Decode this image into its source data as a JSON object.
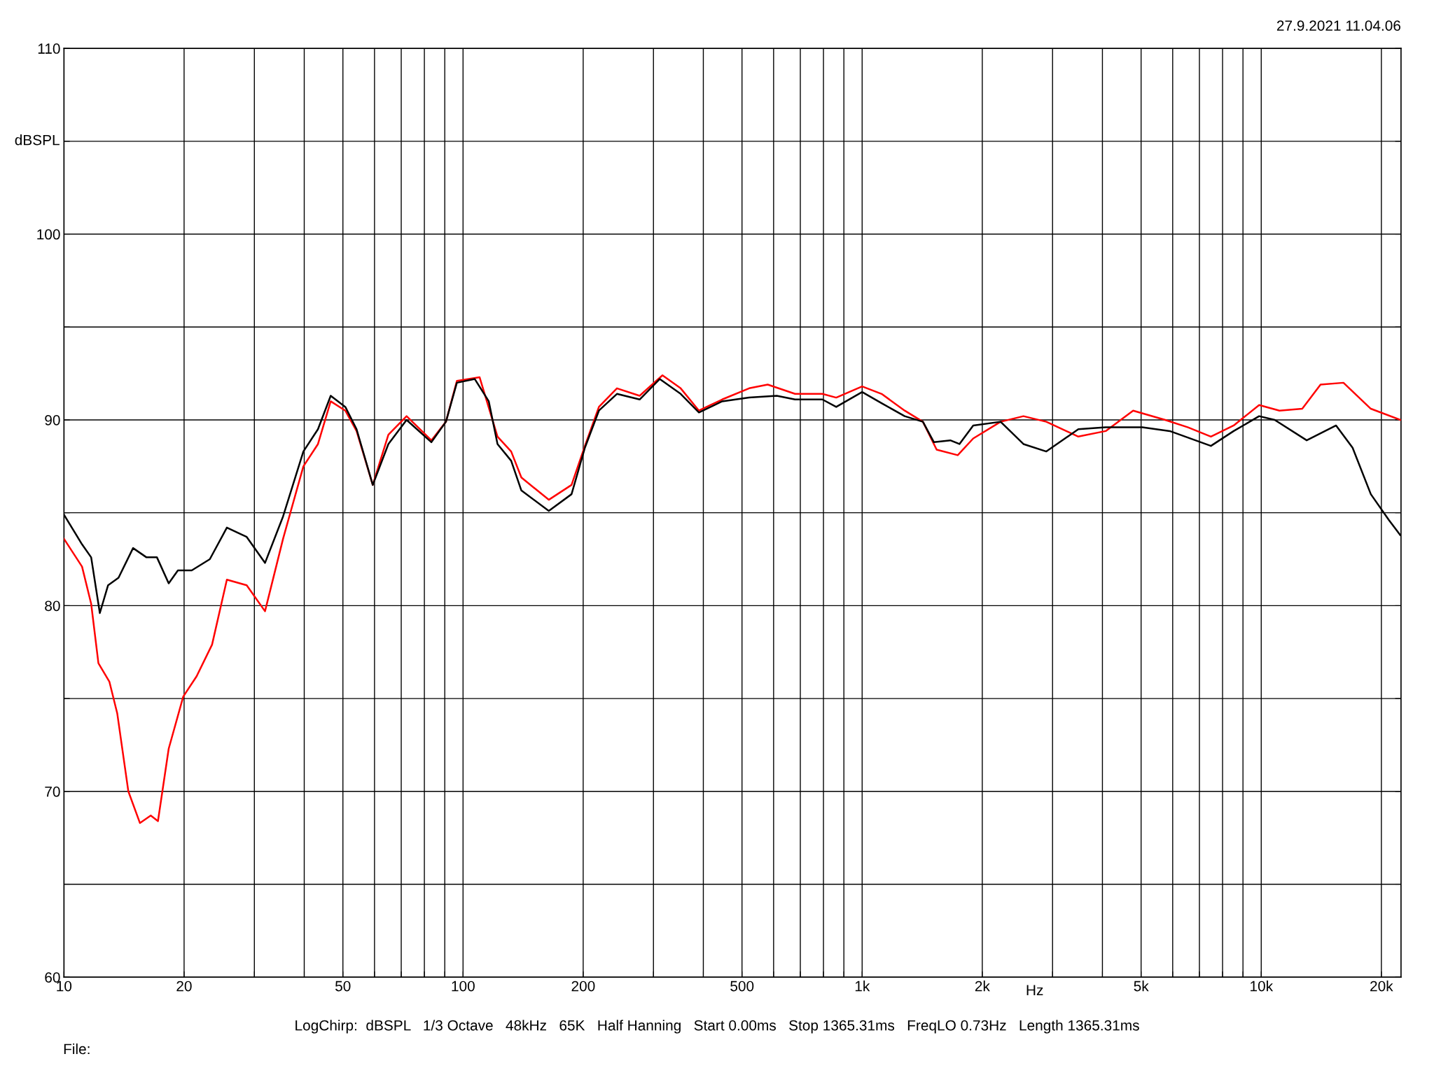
{
  "chart_data": {
    "type": "line",
    "xlabel": "Hz",
    "ylabel": "dBSPL",
    "annotations": [
      "27.9.2021 11.04.06",
      "LogChirp:  dBSPL   1/3 Octave   48kHz   65K   Half Hanning   Start 0.00ms   Stop 1365.31ms   FreqLO 0.73Hz   Length 1365.31ms",
      "File:"
    ],
    "log": "x",
    "grid": true,
    "line_style": "solid",
    "marker": "none",
    "xlim": [
      10,
      22400
    ],
    "ylim": [
      60,
      110
    ],
    "xticks": [
      10,
      {
        "value": 20,
        "label": "20"
      },
      {
        "value": 30,
        "label": null
      },
      {
        "value": 40,
        "label": null
      },
      50,
      {
        "value": 60,
        "label": null
      },
      {
        "value": 70,
        "label": null
      },
      {
        "value": 80,
        "label": null
      },
      {
        "value": 90,
        "label": null
      },
      100,
      200,
      {
        "value": 300,
        "label": null
      },
      {
        "value": 400,
        "label": null
      },
      500,
      {
        "value": 600,
        "label": null
      },
      {
        "value": 700,
        "label": null
      },
      {
        "value": 800,
        "label": null
      },
      {
        "value": 900,
        "label": null
      },
      {
        "value": 1000,
        "label": "1k"
      },
      {
        "value": 2000,
        "label": "2k"
      },
      {
        "value": 3000,
        "label": null
      },
      {
        "value": 4000,
        "label": null
      },
      {
        "value": 5000,
        "label": "5k"
      },
      {
        "value": 6000,
        "label": null
      },
      {
        "value": 7000,
        "label": null
      },
      {
        "value": 8000,
        "label": null
      },
      {
        "value": 9000,
        "label": null
      },
      {
        "value": 10000,
        "label": "10k"
      },
      {
        "value": 20000,
        "label": "20k"
      }
    ],
    "yticks": [
      60,
      {
        "value": 65,
        "label": null
      },
      70,
      {
        "value": 75,
        "label": null
      },
      80,
      {
        "value": 85,
        "label": null
      },
      90,
      {
        "value": 95,
        "label": null
      },
      100,
      {
        "value": 105,
        "label": null
      },
      110
    ],
    "series": [
      {
        "color": "#ff0000",
        "x": [
          10,
          11.1,
          11.7,
          12.2,
          13.0,
          13.6,
          14.5,
          15.5,
          16.5,
          17.2,
          18.3,
          19.9,
          21.5,
          23.5,
          25.6,
          28.7,
          31.9,
          35.4,
          39.8,
          43.3,
          46.6,
          50.7,
          54.1,
          59.4,
          65.0,
          72.2,
          83.3,
          90.6,
          96.5,
          110,
          122,
          132,
          140,
          164,
          187,
          202,
          219,
          243,
          277,
          316,
          351,
          390,
          446,
          521,
          580,
          679,
          795,
          861,
          1000,
          1119,
          1278,
          1420,
          1537,
          1736,
          1898,
          2223,
          2536,
          2894,
          3481,
          4076,
          4776,
          5746,
          6555,
          7480,
          8530,
          9880,
          11110,
          12670,
          14080,
          16070,
          18820,
          22300
        ],
        "values": [
          83.6,
          82.1,
          80.1,
          76.9,
          75.9,
          74.2,
          70.0,
          68.3,
          68.7,
          68.4,
          72.3,
          75.1,
          76.2,
          77.9,
          81.4,
          81.1,
          79.7,
          83.6,
          87.5,
          88.7,
          91.0,
          90.5,
          89.4,
          86.5,
          89.2,
          90.2,
          88.9,
          89.9,
          92.1,
          92.3,
          89.1,
          88.3,
          86.9,
          85.7,
          86.5,
          88.6,
          90.7,
          91.7,
          91.3,
          92.4,
          91.7,
          90.5,
          91.1,
          91.7,
          91.9,
          91.4,
          91.4,
          91.2,
          91.8,
          91.4,
          90.5,
          89.9,
          88.4,
          88.1,
          89.0,
          89.9,
          90.2,
          89.9,
          89.1,
          89.4,
          90.5,
          90.0,
          89.6,
          89.1,
          89.7,
          90.8,
          90.5,
          90.6,
          91.9,
          92.0,
          90.6,
          90.0
        ]
      },
      {
        "color": "#000000",
        "x": [
          10,
          11.1,
          11.7,
          12.3,
          12.9,
          13.7,
          14.9,
          16.1,
          17.1,
          18.3,
          19.3,
          20.9,
          23.2,
          25.6,
          28.7,
          31.9,
          35.4,
          39.8,
          43.3,
          46.6,
          50.7,
          54.1,
          59.4,
          65.0,
          72.2,
          83.3,
          90.6,
          96.5,
          107,
          116,
          122,
          132,
          140,
          164,
          187,
          202,
          219,
          243,
          277,
          311,
          351,
          390,
          446,
          521,
          611,
          679,
          795,
          861,
          1000,
          1119,
          1278,
          1420,
          1513,
          1663,
          1753,
          1898,
          2223,
          2536,
          2894,
          3481,
          4076,
          5035,
          5900,
          7480,
          8530,
          9880,
          10810,
          13000,
          15400,
          16940,
          18820,
          20900,
          22300
        ],
        "values": [
          84.9,
          83.3,
          82.6,
          79.6,
          81.1,
          81.5,
          83.1,
          82.6,
          82.6,
          81.2,
          81.9,
          81.9,
          82.5,
          84.2,
          83.7,
          82.3,
          84.8,
          88.3,
          89.5,
          91.3,
          90.7,
          89.5,
          86.5,
          88.7,
          90.0,
          88.8,
          89.9,
          92.0,
          92.2,
          91.0,
          88.7,
          87.8,
          86.2,
          85.1,
          86.0,
          88.5,
          90.5,
          91.4,
          91.1,
          92.2,
          91.4,
          90.4,
          91.0,
          91.2,
          91.3,
          91.1,
          91.1,
          90.7,
          91.5,
          90.9,
          90.2,
          89.9,
          88.8,
          88.9,
          88.7,
          89.7,
          89.9,
          88.7,
          88.3,
          89.5,
          89.6,
          89.6,
          89.4,
          88.6,
          89.4,
          90.2,
          90.0,
          88.9,
          89.7,
          88.5,
          86.0,
          84.6,
          83.8
        ]
      }
    ]
  }
}
